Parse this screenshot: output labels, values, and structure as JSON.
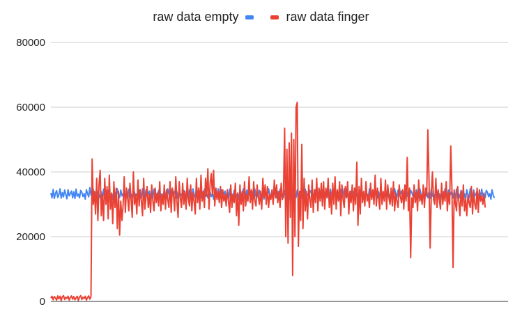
{
  "chart_data": {
    "type": "line",
    "title": "",
    "xlabel": "",
    "ylabel": "",
    "ylim": [
      0,
      80000
    ],
    "yticks": [
      0,
      20000,
      40000,
      60000,
      80000
    ],
    "ytick_labels": [
      "0",
      "20000",
      "40000",
      "60000",
      "80000"
    ],
    "grid": true,
    "legend_position": "top",
    "x_count": 400,
    "series": [
      {
        "name": "raw data empty",
        "color": "#4285f4",
        "values": [
          33500,
          32000,
          34600,
          31800,
          33400,
          34200,
          32100,
          33000,
          34800,
          31900,
          33600,
          32300,
          34400,
          33100,
          31700,
          34500,
          32600,
          33300,
          34100,
          32000,
          33900,
          31800,
          34700,
          32500,
          33200,
          32000,
          34300,
          33700,
          32400,
          33300,
          31600,
          34500,
          33300,
          32300,
          35200,
          33000,
          32200,
          34600,
          31500,
          33200,
          34700,
          33300,
          33100,
          32000,
          33900,
          31800,
          34700,
          32500,
          33200,
          32000,
          34300,
          33700,
          32400,
          33300,
          31600,
          34500,
          32900,
          32000,
          34800,
          33100,
          32100,
          34400,
          32600,
          33200,
          34100,
          32000,
          33900,
          31800,
          34700,
          32500,
          33200,
          32000,
          34300,
          33700,
          32400,
          33300,
          31600,
          34500,
          32900,
          32000,
          34800,
          33100,
          32100,
          34400,
          32600,
          33200,
          34100,
          32000,
          33900,
          31800,
          34700,
          32500,
          33200,
          32000,
          34300,
          33700,
          32400,
          33300,
          31600,
          34500,
          32900,
          32000,
          34800,
          33100,
          32100,
          34400,
          32600,
          33200,
          34100,
          32000,
          33900,
          31800,
          34700,
          32500,
          33200,
          32000,
          34300,
          33700,
          32400,
          33300,
          31600,
          34500,
          32900,
          32000,
          34800,
          33100,
          32100,
          34400,
          32600,
          33200,
          34100,
          32000,
          33900,
          31800,
          34700,
          32500,
          33200,
          32000,
          34300,
          33700,
          32400,
          33300,
          31600,
          34500,
          32900,
          32000,
          34800,
          33100,
          32100,
          34400,
          32600,
          33200,
          34100,
          32000,
          33900,
          31800,
          34700,
          32500,
          33200,
          32000,
          34300,
          33700,
          32400,
          33300,
          31600,
          34500,
          32900,
          32000,
          34800,
          33100,
          32100,
          34400,
          32600,
          33200,
          34100,
          32000,
          33900,
          31800,
          34700,
          32500,
          33200,
          32000,
          34300,
          33700,
          32400,
          33300,
          31600,
          34500,
          32900,
          32000,
          34800,
          33100,
          32100,
          34400,
          32600,
          33200,
          34100,
          32000,
          33900,
          31800,
          34700,
          32500,
          33200,
          32000,
          34300,
          33700,
          32400,
          33300,
          31600,
          34500,
          32900,
          32000,
          34800,
          33100,
          32100,
          34400,
          32600,
          33200,
          34100,
          32000,
          33900,
          31800,
          34700,
          32500,
          33200,
          32000,
          34300,
          33700,
          32400,
          33300,
          31600,
          34500,
          32900,
          32000,
          34800,
          33100,
          32100,
          34400,
          32600,
          33200,
          34100,
          32000,
          33900,
          31800,
          34700,
          32500,
          33200,
          32000,
          34300,
          33700,
          32400,
          33300,
          31600,
          34500,
          32900,
          32000,
          34800,
          33100,
          32100,
          34400,
          32600,
          33200,
          34100,
          32000,
          33900,
          31800,
          34700,
          32500,
          33200,
          32000,
          34300,
          33700,
          32400,
          33300,
          31600,
          34500,
          32900,
          32000,
          34800,
          33100,
          32100,
          34400,
          32600,
          33200,
          34100,
          32000,
          33900,
          31800,
          34700,
          32500,
          33200,
          32000,
          34300,
          33700,
          32400,
          33300,
          31600,
          34500,
          32900,
          32000,
          34800,
          33100,
          32100,
          34400,
          32600,
          33200,
          34100,
          32000,
          33900,
          31800,
          34700,
          32500,
          33200,
          32000,
          34300,
          33700,
          32400,
          33300,
          31600,
          34500,
          32900,
          32000,
          34800,
          33100,
          32100,
          34400,
          32600,
          33200,
          34100,
          32000,
          33900,
          31800,
          34700,
          32500,
          33200,
          32000,
          34300,
          33700,
          32400,
          33300,
          31600,
          34500,
          32900,
          32000,
          34800,
          33100,
          32100,
          34400,
          32600,
          33200,
          34100,
          32000,
          33900,
          31800,
          34700,
          32500,
          33200,
          32000,
          34300,
          33700,
          32400,
          33300,
          31600,
          34500,
          32900,
          32000,
          34800,
          33100,
          32100,
          34400,
          32600,
          33200,
          34100,
          32000,
          33900,
          31800,
          34700,
          32500,
          33200,
          32000,
          34300,
          33700,
          32400,
          33300,
          31600,
          34500,
          32900,
          32000
        ]
      },
      {
        "name": "raw data finger",
        "color": "#e94235",
        "values": [
          1000,
          1600,
          500,
          1500,
          1100,
          400,
          1700,
          800,
          1600,
          300,
          1400,
          1800,
          600,
          1300,
          900,
          1600,
          400,
          1200,
          1700,
          700,
          1500,
          500,
          1100,
          1600,
          300,
          1400,
          1800,
          600,
          1300,
          900,
          1600,
          400,
          1200,
          1700,
          700,
          1500,
          44000,
          30000,
          34000,
          27000,
          38000,
          25000,
          36000,
          40500,
          26500,
          33000,
          25000,
          38000,
          30000,
          35500,
          25500,
          39000,
          28500,
          33500,
          24000,
          37000,
          29000,
          35000,
          22500,
          34000,
          20500,
          31000,
          25000,
          29500,
          38500,
          27500,
          35000,
          32000,
          28000,
          36500,
          31500,
          26000,
          40000,
          30000,
          33000,
          27000,
          37500,
          29500,
          34500,
          31000,
          26500,
          38000,
          28500,
          32000,
          35500,
          29000,
          33000,
          27500,
          36000,
          31000,
          28000,
          35000,
          30500,
          33500,
          29500,
          37000,
          28000,
          33000,
          30000,
          36000,
          28500,
          34500,
          31500,
          29000,
          37000,
          27500,
          35000,
          33000,
          28000,
          38500,
          31000,
          26000,
          37000,
          32000,
          29000,
          36500,
          30000,
          34000,
          28500,
          38000,
          31500,
          29500,
          36000,
          28000,
          33500,
          31000,
          27000,
          38000,
          30500,
          35000,
          28500,
          39000,
          31000,
          34000,
          29000,
          38000,
          32500,
          41000,
          28500,
          36500,
          39500,
          33000,
          40500,
          29500,
          35000,
          31500,
          34000,
          30500,
          35500,
          29000,
          34500,
          31000,
          33000,
          29500,
          34500,
          31000,
          27500,
          36000,
          29000,
          33000,
          30500,
          36500,
          26500,
          33500,
          23500,
          36000,
          30000,
          34000,
          28000,
          37000,
          29500,
          33000,
          31000,
          38500,
          30500,
          34500,
          28500,
          37000,
          31000,
          29500,
          36000,
          32500,
          30000,
          34000,
          28500,
          38000,
          32000,
          36000,
          30000,
          35500,
          29000,
          33000,
          31500,
          34500,
          30000,
          37500,
          32000,
          36000,
          30500,
          34000,
          29000,
          36500,
          31500,
          33500,
          53500,
          20000,
          47000,
          18000,
          49000,
          26000,
          52000,
          8000,
          50000,
          20000,
          60000,
          61500,
          17000,
          34000,
          25000,
          48500,
          22500,
          38000,
          28000,
          34000,
          25500,
          36000,
          31500,
          29000,
          37500,
          27500,
          34500,
          30500,
          38000,
          28000,
          35000,
          31000,
          36500,
          29500,
          37000,
          28500,
          35000,
          32000,
          38000,
          29000,
          34000,
          27000,
          36500,
          30000,
          38500,
          28500,
          34500,
          31000,
          37000,
          26500,
          36000,
          31500,
          29000,
          35500,
          32000,
          37000,
          27000,
          34000,
          30500,
          36000,
          28000,
          35000,
          30000,
          43000,
          23500,
          35500,
          27000,
          38000,
          30500,
          34000,
          29500,
          37000,
          31000,
          33000,
          29000,
          36500,
          31500,
          34500,
          30000,
          39000,
          29500,
          35000,
          32000,
          28500,
          38000,
          30000,
          34000,
          31000,
          37500,
          28500,
          36000,
          32000,
          30000,
          35000,
          29500,
          37000,
          28000,
          33500,
          31000,
          29000,
          36000,
          32500,
          30500,
          34500,
          28500,
          36000,
          31000,
          44500,
          28000,
          35000,
          13500,
          32000,
          29000,
          36000,
          30500,
          34000,
          28000,
          37500,
          31000,
          33000,
          30000,
          36000,
          29000,
          35000,
          32500,
          53000,
          38000,
          16500,
          33000,
          40000,
          31500,
          30000,
          38000,
          29000,
          34500,
          31500,
          28500,
          36500,
          30000,
          34000,
          31000,
          37000,
          28000,
          33500,
          30000,
          48000,
          35000,
          10500,
          34500,
          30500,
          28000,
          35500,
          31000,
          26500,
          34000,
          29500,
          36000,
          28000,
          31500,
          26500,
          33000,
          30500,
          29000,
          35500,
          27000,
          34000,
          30000,
          28500,
          35000,
          27500,
          34500,
          31000,
          32500,
          30000,
          33500,
          29000
        ]
      }
    ]
  }
}
